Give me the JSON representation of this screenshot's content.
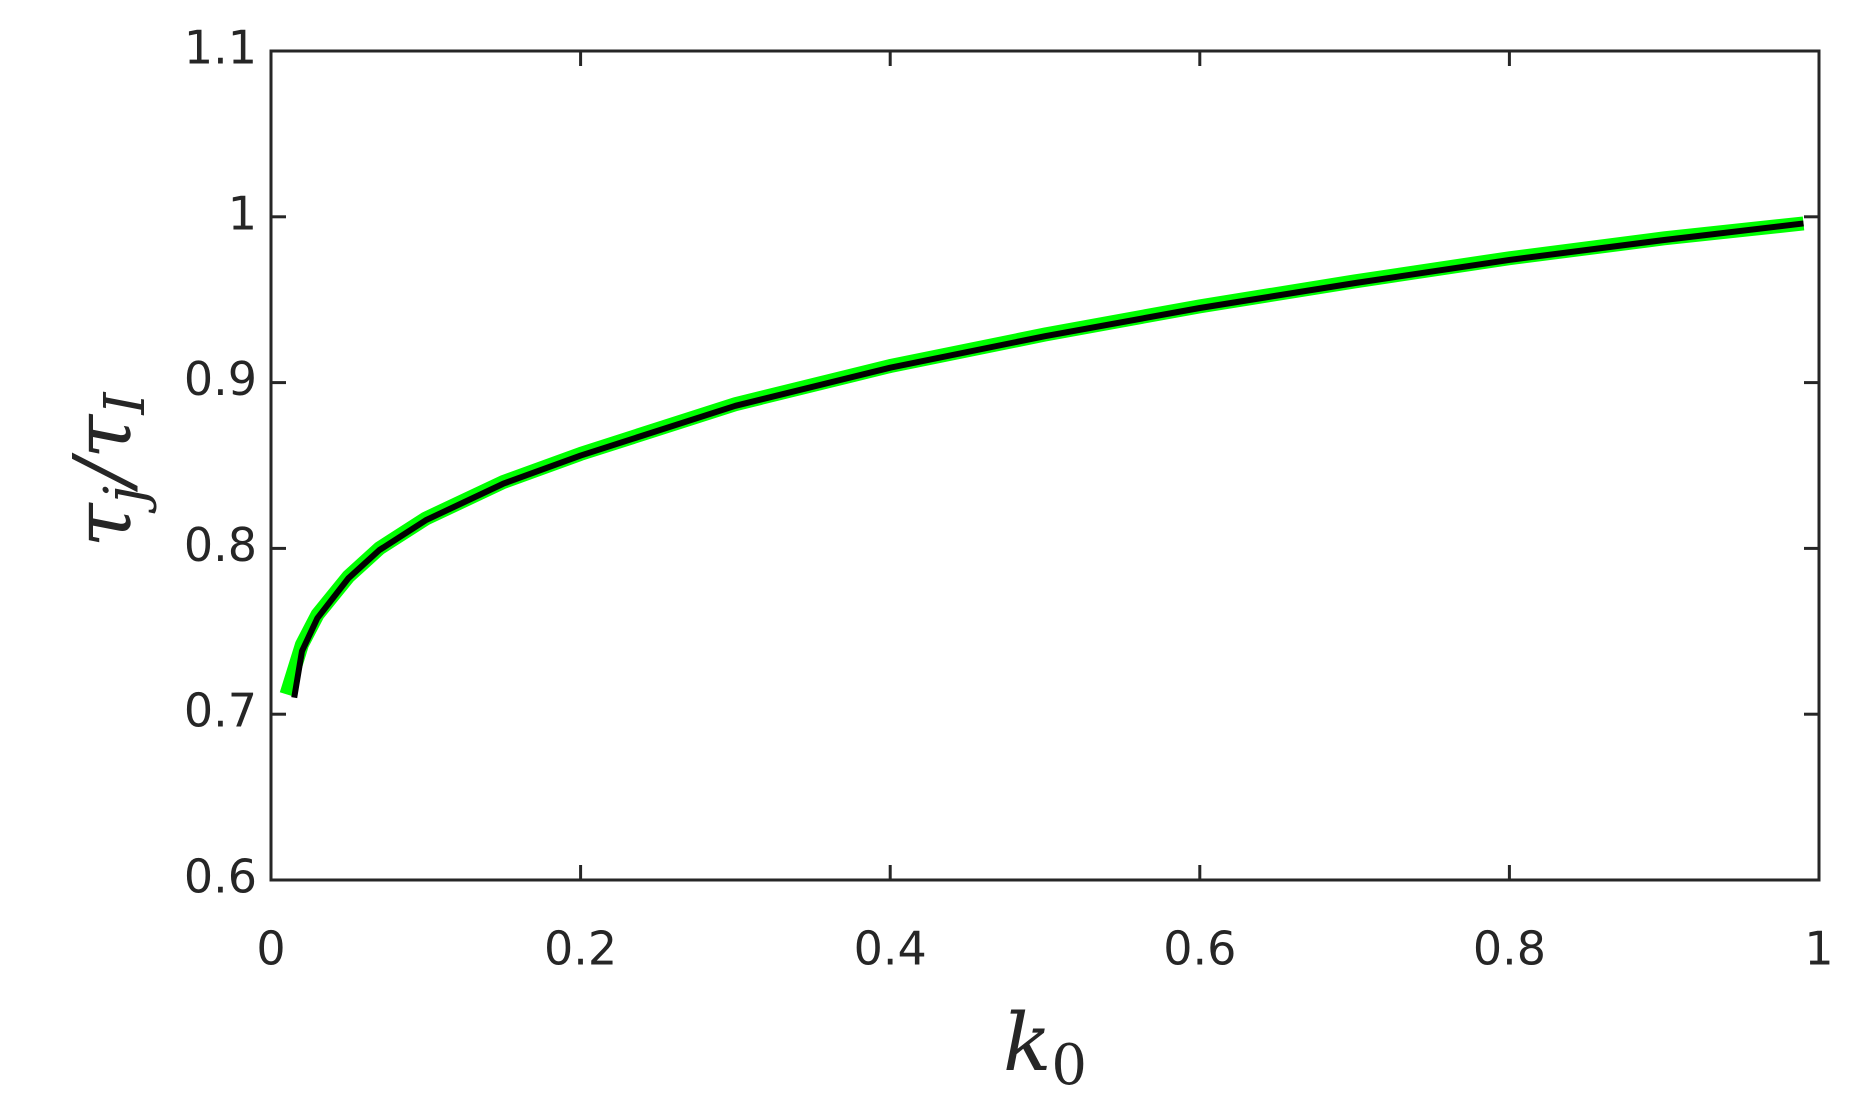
{
  "chart_data": {
    "type": "line",
    "xlabel": [
      "k",
      "0"
    ],
    "ylabel": [
      "τ",
      "j",
      "/τ",
      "I"
    ],
    "series": [
      {
        "color": "#00ff00",
        "width": 14,
        "x": [
          0.01,
          0.02,
          0.03,
          0.05,
          0.07,
          0.1,
          0.15,
          0.2,
          0.3,
          0.4,
          0.5,
          0.6,
          0.7,
          0.8,
          0.9,
          0.99
        ],
        "values": [
          0.712,
          0.742,
          0.76,
          0.783,
          0.8,
          0.818,
          0.84,
          0.857,
          0.887,
          0.91,
          0.929,
          0.946,
          0.961,
          0.975,
          0.987,
          0.996
        ]
      },
      {
        "color": "#000000",
        "width": 6,
        "x": [
          0.015,
          0.02,
          0.03,
          0.05,
          0.07,
          0.1,
          0.15,
          0.2,
          0.3,
          0.4,
          0.5,
          0.6,
          0.7,
          0.8,
          0.9,
          0.99
        ],
        "values": [
          0.71,
          0.738,
          0.758,
          0.782,
          0.799,
          0.817,
          0.839,
          0.856,
          0.886,
          0.909,
          0.928,
          0.945,
          0.96,
          0.974,
          0.986,
          0.996
        ]
      }
    ],
    "xlim": [
      0,
      1
    ],
    "xticks": [
      0,
      0.2,
      0.4,
      0.6,
      0.8,
      1
    ],
    "ylim": [
      0.6,
      1.1
    ],
    "yticks": [
      0.6,
      0.7,
      0.8,
      0.9,
      1,
      1.1
    ]
  }
}
